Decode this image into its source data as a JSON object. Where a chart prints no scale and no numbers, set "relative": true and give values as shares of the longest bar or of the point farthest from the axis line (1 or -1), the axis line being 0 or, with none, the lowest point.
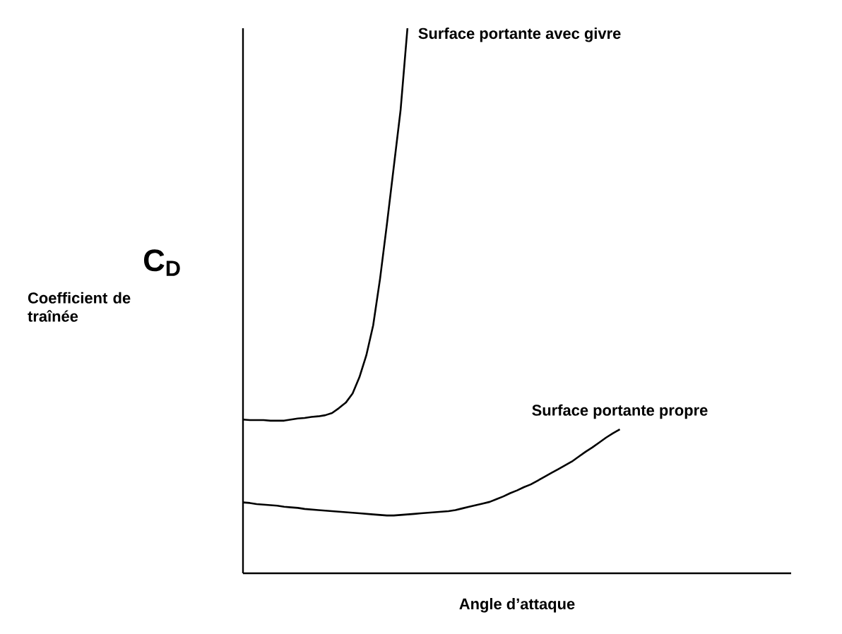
{
  "chart_data": {
    "type": "line",
    "relative": true,
    "xlabel": "Angle d’attaque",
    "ylabel": "C$_{D}$",
    "annotations": [
      "Coefficient de traînée"
    ],
    "marker": "none",
    "line_style": "solid",
    "categories": [
      null,
      null,
      null,
      null,
      null,
      null,
      null,
      null,
      null,
      null,
      null,
      null,
      null,
      null,
      null,
      null,
      null,
      null,
      null,
      null,
      null,
      null,
      null,
      null,
      null,
      null,
      null,
      null,
      null,
      null,
      null,
      null,
      null,
      null,
      null,
      null,
      null,
      null,
      null,
      null,
      null,
      null,
      null,
      null,
      null,
      null,
      null,
      null,
      null,
      null,
      null,
      null,
      null,
      null,
      null,
      null,
      null,
      null,
      null,
      null,
      null,
      null,
      null,
      null,
      null,
      null,
      null,
      null,
      null,
      null,
      null,
      null,
      null,
      null,
      null,
      null,
      null,
      null,
      null,
      null,
      null
    ],
    "series": [
      {
        "name": "Surface portante avec givre",
        "color": "#000000",
        "values": [
          0.282,
          0.281,
          0.281,
          0.281,
          0.28,
          0.28,
          0.28,
          0.282,
          0.284,
          0.285,
          0.287,
          0.288,
          0.29,
          0.294,
          0.303,
          0.313,
          0.33,
          0.36,
          0.4,
          0.455,
          0.54,
          0.64,
          0.745,
          0.85,
          1.0,
          null,
          null,
          null,
          null,
          null,
          null,
          null,
          null,
          null,
          null,
          null,
          null,
          null,
          null,
          null,
          null,
          null,
          null,
          null,
          null,
          null,
          null,
          null,
          null,
          null,
          null,
          null,
          null,
          null,
          null,
          null,
          null,
          null,
          null,
          null,
          null,
          null,
          null,
          null,
          null,
          null,
          null,
          null,
          null,
          null,
          null,
          null,
          null,
          null,
          null,
          null,
          null,
          null,
          null,
          null,
          null
        ]
      },
      {
        "name": "Surface portante propre",
        "color": "#000000",
        "values": [
          0.13,
          0.129,
          0.127,
          0.126,
          0.125,
          0.124,
          0.122,
          0.121,
          0.12,
          0.118,
          0.117,
          0.116,
          0.115,
          0.114,
          0.113,
          0.112,
          0.111,
          0.11,
          0.109,
          0.108,
          0.107,
          0.106,
          0.106,
          0.107,
          0.108,
          0.109,
          0.11,
          0.111,
          0.112,
          0.113,
          0.114,
          0.116,
          0.119,
          0.122,
          0.125,
          0.128,
          0.131,
          0.136,
          0.141,
          0.147,
          0.152,
          0.158,
          0.163,
          0.17,
          0.177,
          0.184,
          0.191,
          0.198,
          0.205,
          0.214,
          0.223,
          0.231,
          0.24,
          0.249,
          0.257,
          0.264,
          null,
          null,
          null,
          null,
          null,
          null,
          null,
          null,
          null,
          null,
          null,
          null,
          null,
          null,
          null,
          null,
          null,
          null,
          null,
          null,
          null,
          null,
          null,
          null,
          null
        ]
      }
    ]
  }
}
